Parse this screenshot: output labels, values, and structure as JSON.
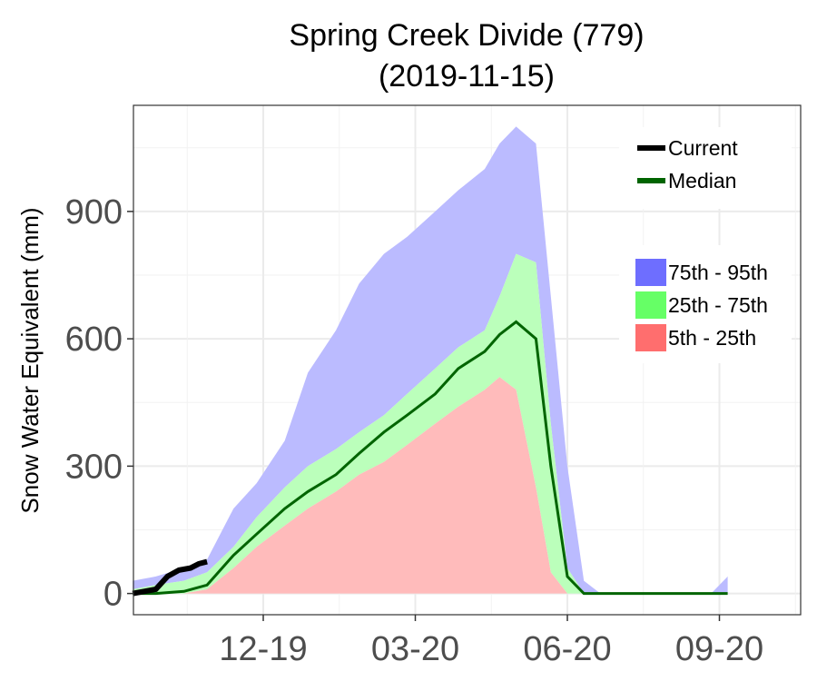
{
  "chart_data": {
    "type": "area",
    "title": "Spring Creek Divide (779)",
    "subtitle": "(2019-11-15)",
    "ylabel": "Snow Water Equivalent (mm)",
    "xlabel": "",
    "ylim": [
      -50,
      1150
    ],
    "y_ticks": [
      0,
      300,
      600,
      900
    ],
    "x_ticks": [
      "12-19",
      "03-20",
      "06-20",
      "09-20"
    ],
    "grid": true,
    "legend_lines": [
      {
        "name": "Current",
        "color": "#000000"
      },
      {
        "name": "Median",
        "color": "#006400"
      }
    ],
    "legend_bands": [
      {
        "name": "75th - 95th",
        "color": "#6e6eff"
      },
      {
        "name": "25th - 75th",
        "color": "#66ff66"
      },
      {
        "name": "5th - 25th",
        "color": "#ff6e6e"
      }
    ],
    "band_colors": {
      "p75_95": "#bbbbff",
      "p25_75": "#bbffbb",
      "p5_25": "#ffbbbb"
    },
    "x": [
      "10-01",
      "10-15",
      "11-01",
      "11-15",
      "12-01",
      "12-15",
      "01-01",
      "01-15",
      "02-01",
      "02-15",
      "03-01",
      "03-15",
      "04-01",
      "04-15",
      "05-01",
      "05-10",
      "05-20",
      "06-01",
      "06-10",
      "06-20",
      "06-30",
      "07-10",
      "07-20",
      "08-01",
      "09-01",
      "09-15",
      "09-25"
    ],
    "p5": [
      0,
      0,
      0,
      0,
      0,
      0,
      0,
      0,
      0,
      0,
      0,
      0,
      0,
      0,
      0,
      0,
      0,
      0,
      0,
      0,
      0,
      0,
      0,
      0,
      0,
      0,
      0
    ],
    "p25": [
      0,
      0,
      0,
      10,
      60,
      110,
      160,
      200,
      240,
      280,
      310,
      350,
      400,
      440,
      480,
      510,
      480,
      250,
      50,
      0,
      0,
      0,
      0,
      0,
      0,
      0,
      0
    ],
    "p75": [
      10,
      20,
      30,
      50,
      110,
      180,
      250,
      300,
      340,
      380,
      420,
      470,
      530,
      580,
      620,
      700,
      800,
      780,
      400,
      60,
      0,
      0,
      0,
      0,
      0,
      0,
      0
    ],
    "p95": [
      30,
      40,
      60,
      80,
      200,
      260,
      360,
      520,
      620,
      730,
      800,
      840,
      900,
      950,
      1000,
      1060,
      1100,
      1060,
      700,
      300,
      30,
      0,
      0,
      0,
      0,
      0,
      40
    ],
    "median": [
      0,
      0,
      5,
      20,
      90,
      140,
      200,
      240,
      280,
      330,
      380,
      420,
      470,
      530,
      570,
      610,
      640,
      600,
      300,
      40,
      0,
      0,
      0,
      0,
      0,
      0,
      0
    ],
    "current": {
      "x": [
        "10-01",
        "10-08",
        "10-15",
        "10-22",
        "10-29",
        "11-05",
        "11-10",
        "11-15"
      ],
      "values": [
        0,
        5,
        10,
        40,
        55,
        60,
        70,
        75
      ]
    }
  }
}
